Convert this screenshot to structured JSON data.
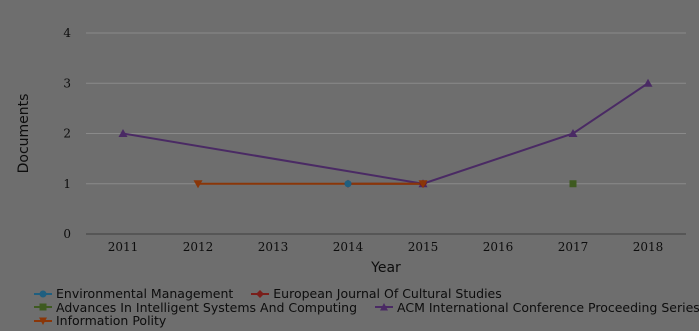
{
  "chart_data": {
    "type": "line",
    "xlabel": "Year",
    "ylabel": "Documents",
    "x": [
      2011,
      2012,
      2013,
      2014,
      2015,
      2016,
      2017,
      2018
    ],
    "ylim": [
      0,
      4
    ],
    "yticks": [
      0,
      1,
      2,
      3,
      4
    ],
    "grid": "horizontal",
    "legend_position": "bottom",
    "series": [
      {
        "name": "Environmental Management",
        "color": "#1f5f80",
        "marker": "circle",
        "points": [
          [
            2014,
            1
          ]
        ]
      },
      {
        "name": "European Journal Of Cultural Studies",
        "color": "#7a1f1b",
        "marker": "diamond",
        "points": [
          [
            2014,
            1
          ],
          [
            2015,
            1
          ]
        ]
      },
      {
        "name": "Advances In Intelligent Systems And Computing",
        "color": "#3e5a20",
        "marker": "square",
        "points": [
          [
            2017,
            1
          ]
        ]
      },
      {
        "name": "ACM International Conference Proceeding Series",
        "color": "#4a2a64",
        "marker": "triangle",
        "points": [
          [
            2011,
            2
          ],
          [
            2015,
            1
          ],
          [
            2017,
            2
          ],
          [
            2018,
            3
          ]
        ]
      },
      {
        "name": "Information Polity",
        "color": "#8a3608",
        "marker": "triangle-down",
        "points": [
          [
            2012,
            1
          ],
          [
            2015,
            1
          ]
        ]
      }
    ]
  }
}
